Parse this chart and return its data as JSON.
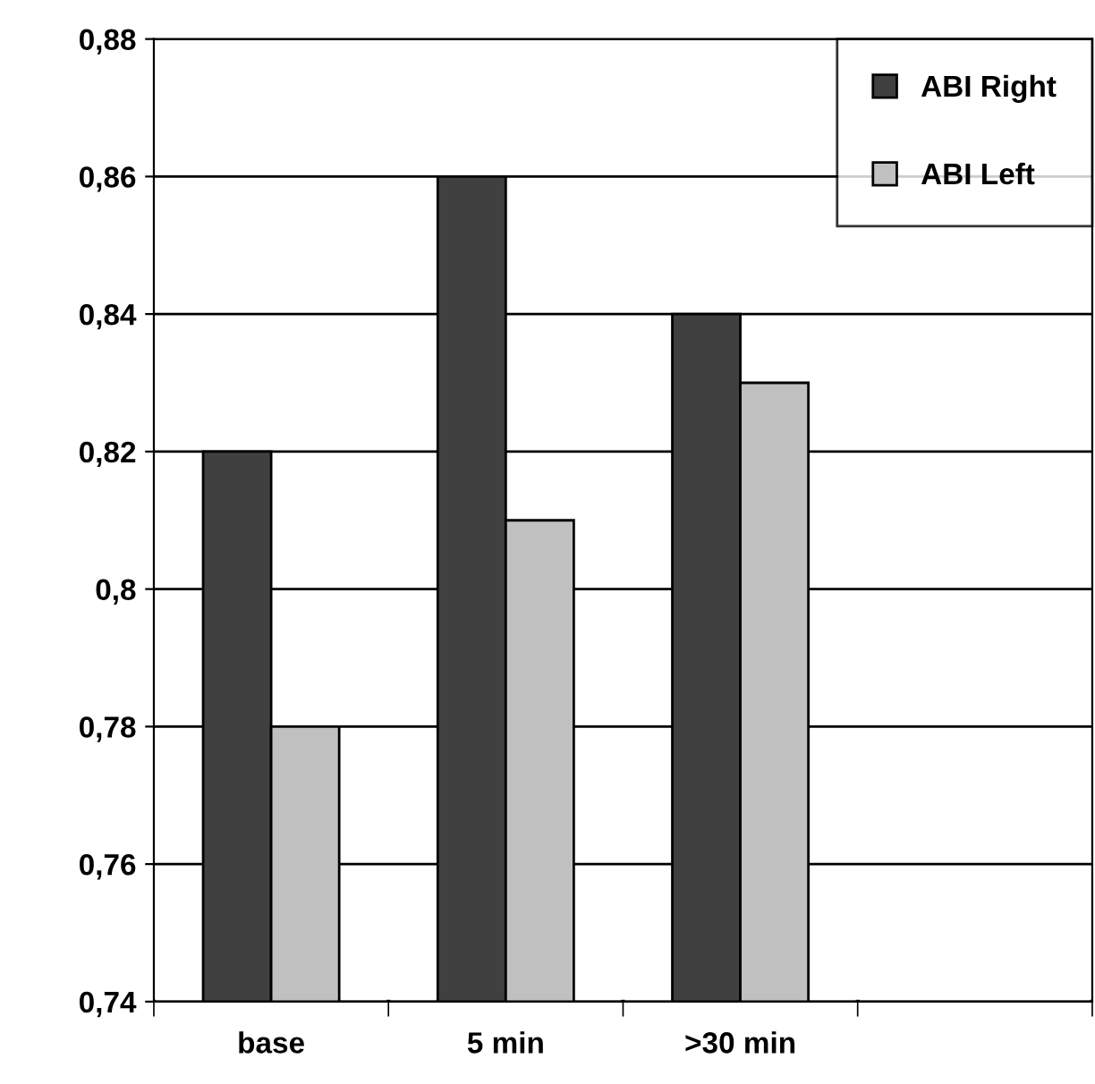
{
  "chart_data": {
    "type": "bar",
    "categories": [
      "base",
      "5 min",
      ">30 min",
      null
    ],
    "series": [
      {
        "name": "ABI Right",
        "color": "#404040",
        "values": [
          0.82,
          0.86,
          0.84,
          null
        ]
      },
      {
        "name": "ABI Left",
        "color": "#c0c0c0",
        "values": [
          0.78,
          0.81,
          0.83,
          null
        ]
      }
    ],
    "ylim": [
      0.74,
      0.88
    ],
    "yticks": [
      {
        "value": 0.74,
        "label": "0,74"
      },
      {
        "value": 0.76,
        "label": "0,76"
      },
      {
        "value": 0.78,
        "label": "0,78"
      },
      {
        "value": 0.8,
        "label": "0,8"
      },
      {
        "value": 0.82,
        "label": "0,82"
      },
      {
        "value": 0.84,
        "label": "0,84"
      },
      {
        "value": 0.86,
        "label": "0,86"
      },
      {
        "value": 0.88,
        "label": "0,88"
      }
    ],
    "grid": "y",
    "legend": "top right"
  }
}
